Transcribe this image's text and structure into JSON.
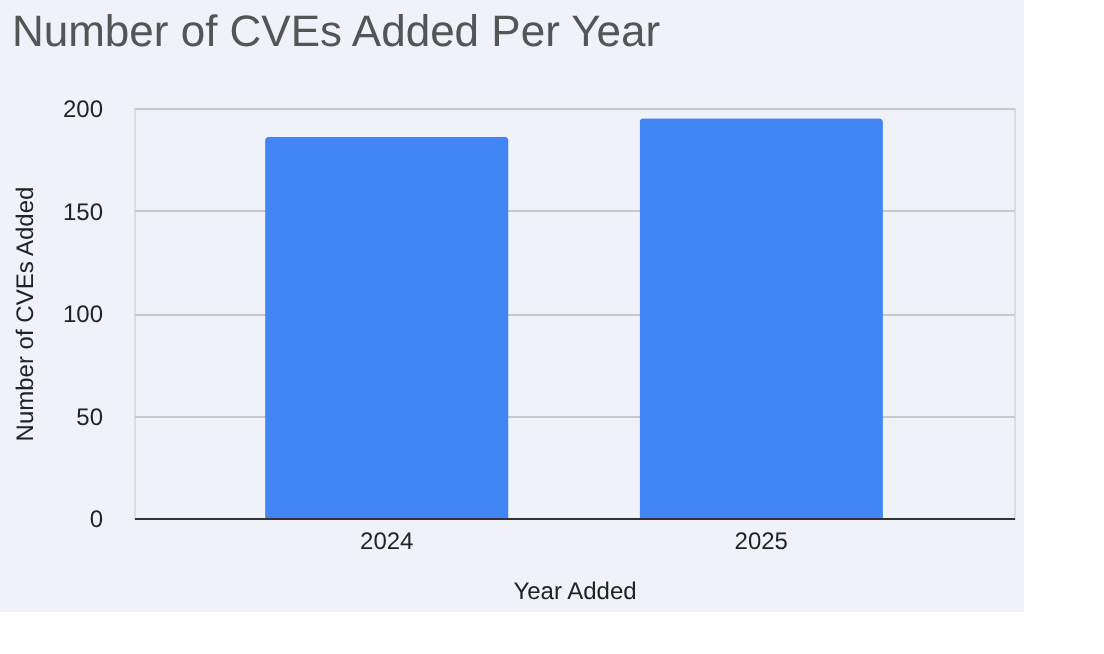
{
  "chart_data": {
    "type": "bar",
    "title": "Number of CVEs Added Per Year",
    "xlabel": "Year Added",
    "ylabel": "Number of CVEs Added",
    "categories": [
      "2024",
      "2025"
    ],
    "values": [
      186,
      195
    ],
    "color": "#4285f4",
    "ylim": [
      0,
      200
    ],
    "yticks": [
      0,
      50,
      100,
      150,
      200
    ],
    "grid": "y"
  }
}
